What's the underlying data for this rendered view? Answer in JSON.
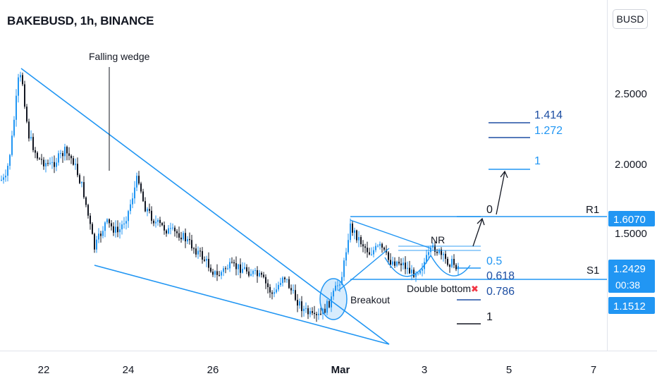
{
  "header": {
    "symbol_title": "BAKEBUSD, 1h, BINANCE",
    "currency_button": "BUSD"
  },
  "colors": {
    "line": "#2196f3",
    "fib": "#1e4fa3",
    "candle": "#131722",
    "price_tag": "#2196f3",
    "axis_text": "#131722",
    "cross": "#f23645"
  },
  "chart_data": {
    "type": "candlestick",
    "title": "BAKEBUSD, 1h, BINANCE",
    "x_ticks": [
      "22",
      "24",
      "26",
      "Mar",
      "3",
      "5",
      "7"
    ],
    "y_ticks": [
      "2.5000",
      "2.0000",
      "1.5000"
    ],
    "price_tags": [
      {
        "label": "R1",
        "price": 1.607,
        "text": "1.6070"
      },
      {
        "label": "S1",
        "price": 1.2429,
        "text": "1.2429",
        "countdown": "00:38"
      },
      {
        "label": "",
        "price": 1.1512,
        "text": "1.1512"
      }
    ],
    "fib_levels": [
      {
        "label": "0"
      },
      {
        "label": "0.5"
      },
      {
        "label": "0.618"
      },
      {
        "label": "0.786"
      },
      {
        "label": "1"
      }
    ],
    "targets": [
      {
        "label": "1.414"
      },
      {
        "label": "1.272"
      },
      {
        "label": "1"
      }
    ],
    "annotations": [
      "Falling wedge",
      "Breakout",
      "Double bottom",
      "NR"
    ],
    "approx_range": {
      "high": 2.68,
      "low": 0.95
    }
  }
}
